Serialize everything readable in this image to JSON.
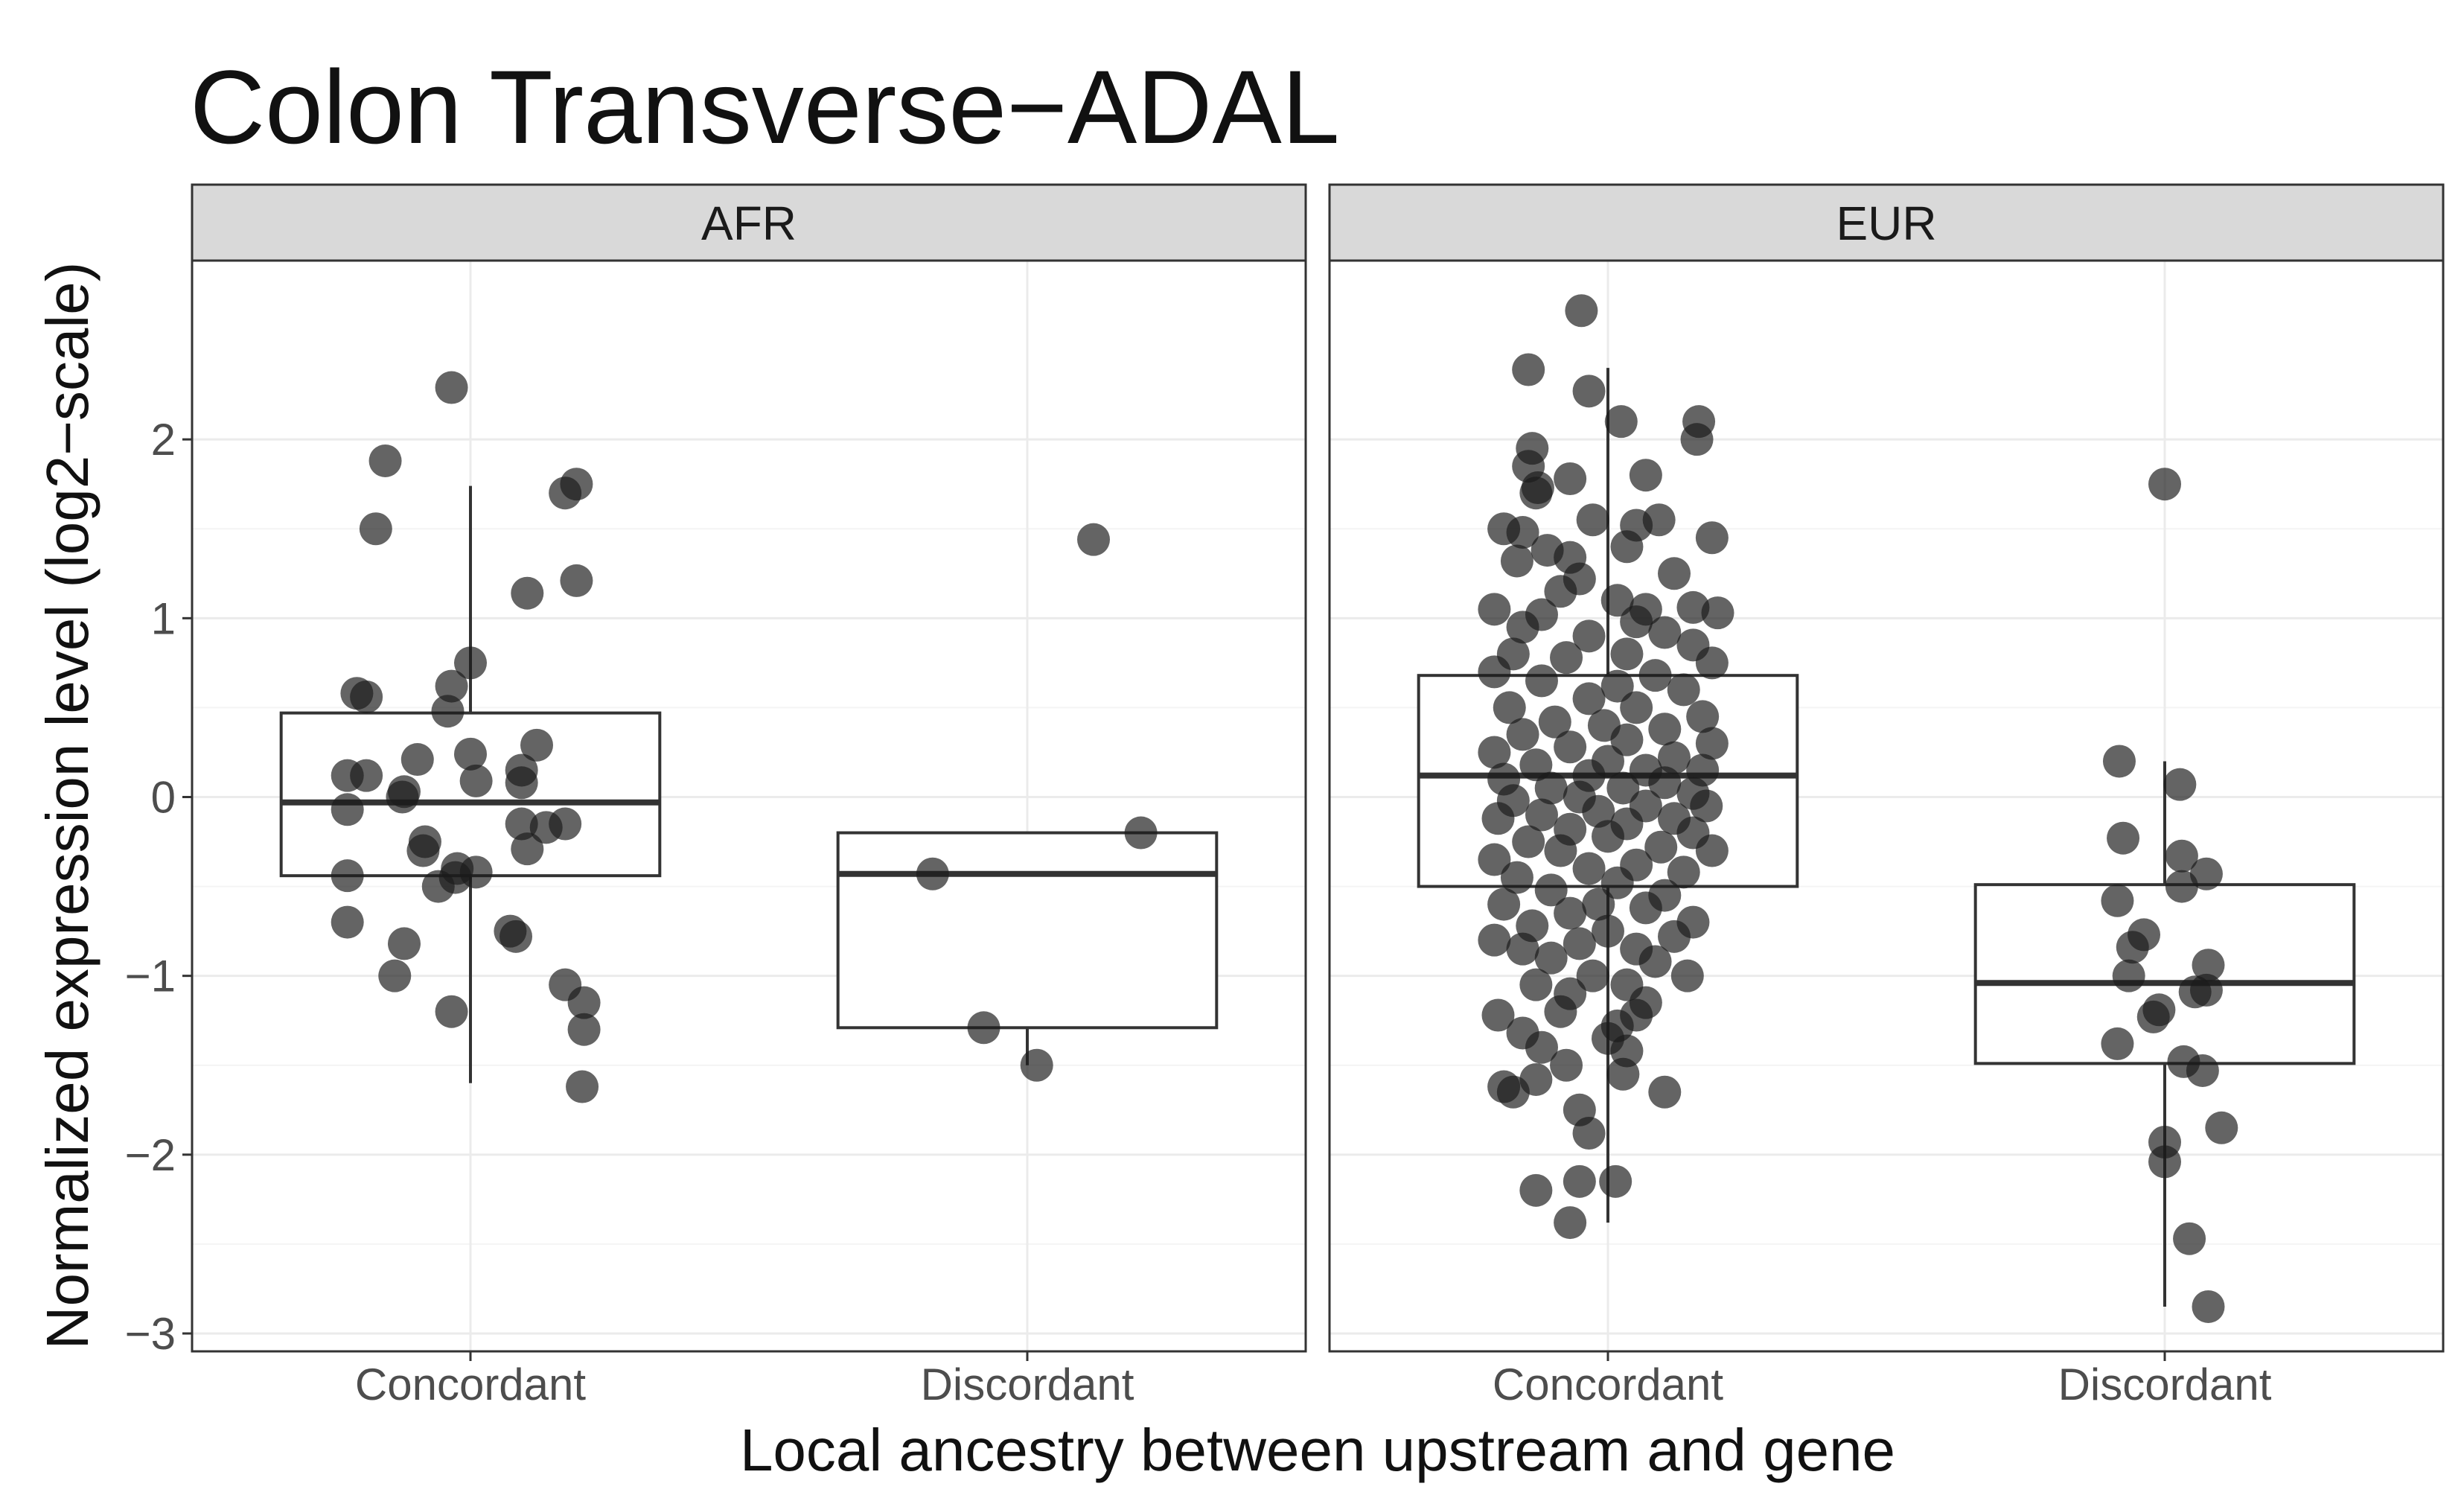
{
  "chart_data": {
    "type": "box",
    "title": "Colon Transverse−ADAL",
    "xlabel": "Local ancestry between upstream and gene",
    "ylabel": "Normalized expression level (log2−scale)",
    "ylim": [
      -3.1,
      3.0
    ],
    "yticks": [
      2,
      1,
      0,
      -1,
      -2,
      -3
    ],
    "ytick_labels": [
      "2",
      "1",
      "0",
      "−1",
      "−2",
      "−3"
    ],
    "categories": [
      "Concordant",
      "Discordant"
    ],
    "colors": {
      "point": "#1a1a1a",
      "strip_bg": "#d9d9d9",
      "frame": "#333333",
      "grid_major": "#ebebeb",
      "grid_minor": "#f4f4f4",
      "box": "#333333"
    },
    "panels": [
      {
        "label": "AFR",
        "groups": [
          {
            "category": "Concordant",
            "box": {
              "whisker_low": -1.6,
              "q1": -0.44,
              "median": -0.03,
              "q3": 0.47,
              "whisker_high": 1.74
            },
            "points": [
              [
                -0.1,
                2.29
              ],
              [
                -0.45,
                1.88
              ],
              [
                0.56,
                1.75
              ],
              [
                0.5,
                1.7
              ],
              [
                -0.5,
                1.5
              ],
              [
                0.3,
                1.14
              ],
              [
                0.56,
                1.21
              ],
              [
                0.0,
                0.75
              ],
              [
                -0.6,
                0.58
              ],
              [
                -0.55,
                0.56
              ],
              [
                -0.1,
                0.62
              ],
              [
                -0.12,
                0.48
              ],
              [
                0.35,
                0.29
              ],
              [
                -0.28,
                0.21
              ],
              [
                0.0,
                0.24
              ],
              [
                -0.65,
                0.12
              ],
              [
                -0.55,
                0.12
              ],
              [
                0.27,
                0.15
              ],
              [
                0.27,
                0.08
              ],
              [
                0.03,
                0.09
              ],
              [
                -0.35,
                0.03
              ],
              [
                -0.36,
                0.0
              ],
              [
                -0.65,
                -0.07
              ],
              [
                0.27,
                -0.15
              ],
              [
                0.5,
                -0.15
              ],
              [
                0.4,
                -0.17
              ],
              [
                -0.24,
                -0.25
              ],
              [
                -0.25,
                -0.3
              ],
              [
                0.3,
                -0.29
              ],
              [
                -0.07,
                -0.4
              ],
              [
                0.03,
                -0.42
              ],
              [
                -0.08,
                -0.45
              ],
              [
                -0.65,
                -0.44
              ],
              [
                -0.17,
                -0.5
              ],
              [
                -0.65,
                -0.7
              ],
              [
                0.21,
                -0.75
              ],
              [
                0.24,
                -0.78
              ],
              [
                -0.35,
                -0.82
              ],
              [
                -0.4,
                -1.0
              ],
              [
                0.5,
                -1.05
              ],
              [
                0.6,
                -1.15
              ],
              [
                -0.1,
                -1.2
              ],
              [
                0.6,
                -1.3
              ],
              [
                0.59,
                -1.62
              ]
            ]
          },
          {
            "category": "Discordant",
            "box": {
              "whisker_low": -1.5,
              "q1": -1.29,
              "median": -0.43,
              "q3": -0.2,
              "whisker_high": -0.2
            },
            "points": [
              [
                0.35,
                1.44
              ],
              [
                0.6,
                -0.2
              ],
              [
                -0.5,
                -0.43
              ],
              [
                -0.23,
                -1.29
              ],
              [
                0.05,
                -1.5
              ]
            ]
          }
        ]
      },
      {
        "label": "EUR",
        "groups": [
          {
            "category": "Concordant",
            "box": {
              "whisker_low": -2.38,
              "q1": -0.5,
              "median": 0.12,
              "q3": 0.68,
              "whisker_high": 2.4
            },
            "points": [
              [
                -0.14,
                2.72
              ],
              [
                -0.42,
                2.39
              ],
              [
                -0.1,
                2.27
              ],
              [
                0.07,
                2.1
              ],
              [
                0.48,
                2.1
              ],
              [
                0.47,
                2.0
              ],
              [
                -0.4,
                1.95
              ],
              [
                -0.42,
                1.85
              ],
              [
                0.2,
                1.8
              ],
              [
                -0.2,
                1.78
              ],
              [
                -0.37,
                1.73
              ],
              [
                -0.38,
                1.7
              ],
              [
                0.27,
                1.55
              ],
              [
                -0.08,
                1.55
              ],
              [
                0.15,
                1.52
              ],
              [
                -0.55,
                1.5
              ],
              [
                0.55,
                1.45
              ],
              [
                -0.45,
                1.48
              ],
              [
                0.1,
                1.4
              ],
              [
                -0.32,
                1.38
              ],
              [
                -0.2,
                1.34
              ],
              [
                -0.48,
                1.32
              ],
              [
                -0.15,
                1.22
              ],
              [
                0.35,
                1.25
              ],
              [
                -0.25,
                1.15
              ],
              [
                0.05,
                1.1
              ],
              [
                0.2,
                1.05
              ],
              [
                -0.6,
                1.05
              ],
              [
                -0.35,
                1.02
              ],
              [
                0.45,
                1.06
              ],
              [
                0.58,
                1.03
              ],
              [
                0.15,
                0.98
              ],
              [
                -0.45,
                0.95
              ],
              [
                0.3,
                0.92
              ],
              [
                -0.1,
                0.9
              ],
              [
                0.45,
                0.85
              ],
              [
                -0.5,
                0.8
              ],
              [
                0.1,
                0.8
              ],
              [
                -0.22,
                0.78
              ],
              [
                0.55,
                0.75
              ],
              [
                -0.6,
                0.7
              ],
              [
                0.25,
                0.68
              ],
              [
                -0.35,
                0.65
              ],
              [
                0.05,
                0.62
              ],
              [
                0.4,
                0.6
              ],
              [
                -0.1,
                0.55
              ],
              [
                -0.52,
                0.5
              ],
              [
                0.15,
                0.5
              ],
              [
                0.5,
                0.45
              ],
              [
                -0.28,
                0.42
              ],
              [
                -0.02,
                0.4
              ],
              [
                0.3,
                0.38
              ],
              [
                -0.45,
                0.35
              ],
              [
                0.1,
                0.32
              ],
              [
                0.55,
                0.3
              ],
              [
                -0.2,
                0.28
              ],
              [
                -0.6,
                0.25
              ],
              [
                0.35,
                0.22
              ],
              [
                0.0,
                0.2
              ],
              [
                -0.38,
                0.18
              ],
              [
                0.2,
                0.15
              ],
              [
                0.5,
                0.15
              ],
              [
                -0.1,
                0.12
              ],
              [
                -0.55,
                0.1
              ],
              [
                0.3,
                0.08
              ],
              [
                0.08,
                0.05
              ],
              [
                -0.3,
                0.05
              ],
              [
                0.45,
                0.02
              ],
              [
                -0.15,
                0.0
              ],
              [
                -0.5,
                -0.02
              ],
              [
                0.2,
                -0.05
              ],
              [
                0.52,
                -0.05
              ],
              [
                -0.05,
                -0.08
              ],
              [
                -0.35,
                -0.1
              ],
              [
                0.35,
                -0.12
              ],
              [
                -0.58,
                -0.12
              ],
              [
                0.1,
                -0.15
              ],
              [
                -0.2,
                -0.18
              ],
              [
                0.45,
                -0.2
              ],
              [
                0.0,
                -0.22
              ],
              [
                -0.42,
                -0.25
              ],
              [
                0.28,
                -0.28
              ],
              [
                -0.25,
                -0.3
              ],
              [
                0.55,
                -0.3
              ],
              [
                -0.6,
                -0.35
              ],
              [
                0.15,
                -0.38
              ],
              [
                -0.1,
                -0.4
              ],
              [
                0.4,
                -0.42
              ],
              [
                -0.48,
                -0.45
              ],
              [
                0.05,
                -0.48
              ],
              [
                -0.3,
                -0.52
              ],
              [
                0.3,
                -0.55
              ],
              [
                -0.05,
                -0.6
              ],
              [
                -0.55,
                -0.6
              ],
              [
                0.2,
                -0.62
              ],
              [
                -0.2,
                -0.65
              ],
              [
                0.45,
                -0.7
              ],
              [
                -0.4,
                -0.72
              ],
              [
                0.0,
                -0.75
              ],
              [
                0.35,
                -0.78
              ],
              [
                -0.6,
                -0.8
              ],
              [
                -0.15,
                -0.82
              ],
              [
                0.15,
                -0.85
              ],
              [
                -0.45,
                -0.85
              ],
              [
                -0.3,
                -0.9
              ],
              [
                0.25,
                -0.92
              ],
              [
                0.42,
                -1.0
              ],
              [
                -0.08,
                -1.0
              ],
              [
                0.1,
                -1.05
              ],
              [
                -0.38,
                -1.05
              ],
              [
                -0.2,
                -1.1
              ],
              [
                0.2,
                -1.15
              ],
              [
                -0.58,
                -1.22
              ],
              [
                -0.25,
                -1.2
              ],
              [
                0.15,
                -1.22
              ],
              [
                0.05,
                -1.28
              ],
              [
                -0.45,
                -1.32
              ],
              [
                0.0,
                -1.35
              ],
              [
                -0.35,
                -1.4
              ],
              [
                0.1,
                -1.42
              ],
              [
                -0.22,
                -1.5
              ],
              [
                0.08,
                -1.55
              ],
              [
                -0.38,
                -1.58
              ],
              [
                -0.55,
                -1.62
              ],
              [
                -0.5,
                -1.65
              ],
              [
                0.3,
                -1.65
              ],
              [
                -0.15,
                -1.75
              ],
              [
                -0.1,
                -1.88
              ],
              [
                -0.15,
                -2.15
              ],
              [
                0.04,
                -2.15
              ],
              [
                -0.2,
                -2.38
              ],
              [
                -0.38,
                -2.2
              ]
            ]
          },
          {
            "category": "Discordant",
            "box": {
              "whisker_low": -2.85,
              "q1": -1.49,
              "median": -1.04,
              "q3": -0.49,
              "whisker_high": 0.2
            },
            "points": [
              [
                0.0,
                1.75
              ],
              [
                -0.24,
                0.2
              ],
              [
                0.08,
                0.07
              ],
              [
                -0.22,
                -0.23
              ],
              [
                0.09,
                -0.33
              ],
              [
                0.22,
                -0.43
              ],
              [
                -0.25,
                -0.58
              ],
              [
                0.09,
                -0.5
              ],
              [
                -0.11,
                -0.77
              ],
              [
                -0.17,
                -0.84
              ],
              [
                0.23,
                -0.94
              ],
              [
                -0.19,
                -1.0
              ],
              [
                0.16,
                -1.09
              ],
              [
                0.22,
                -1.08
              ],
              [
                -0.03,
                -1.19
              ],
              [
                -0.06,
                -1.23
              ],
              [
                -0.25,
                -1.38
              ],
              [
                0.1,
                -1.48
              ],
              [
                0.2,
                -1.53
              ],
              [
                0.3,
                -1.85
              ],
              [
                0.0,
                -1.93
              ],
              [
                0.0,
                -2.04
              ],
              [
                0.13,
                -2.47
              ],
              [
                0.23,
                -2.85
              ]
            ]
          }
        ]
      }
    ]
  }
}
